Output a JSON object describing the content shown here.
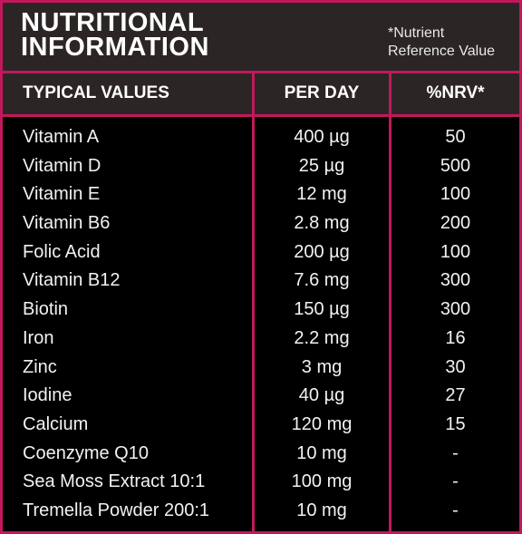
{
  "header": {
    "title_line1": "NUTRITIONAL",
    "title_line2": "INFORMATION",
    "footnote_line1": "*Nutrient",
    "footnote_line2": "Reference Value"
  },
  "columns": {
    "typical": "TYPICAL VALUES",
    "per_day": "PER DAY",
    "nrv": "%NRV*"
  },
  "rows": [
    {
      "name": "Vitamin A",
      "per_day": "400 µg",
      "nrv": "50"
    },
    {
      "name": "Vitamin D",
      "per_day": "25 µg",
      "nrv": "500"
    },
    {
      "name": "Vitamin E",
      "per_day": "12 mg",
      "nrv": "100"
    },
    {
      "name": "Vitamin B6",
      "per_day": "2.8 mg",
      "nrv": "200"
    },
    {
      "name": "Folic Acid",
      "per_day": "200 µg",
      "nrv": "100"
    },
    {
      "name": "Vitamin B12",
      "per_day": "7.6 mg",
      "nrv": "300"
    },
    {
      "name": "Biotin",
      "per_day": "150 µg",
      "nrv": "300"
    },
    {
      "name": "Iron",
      "per_day": "2.2 mg",
      "nrv": "16"
    },
    {
      "name": "Zinc",
      "per_day": "3 mg",
      "nrv": "30"
    },
    {
      "name": "Iodine",
      "per_day": "40 µg",
      "nrv": "27"
    },
    {
      "name": "Calcium",
      "per_day": "120 mg",
      "nrv": "15"
    },
    {
      "name": "Coenzyme Q10",
      "per_day": "10 mg",
      "nrv": "-"
    },
    {
      "name": "Sea Moss Extract 10:1",
      "per_day": "100 mg",
      "nrv": "-"
    },
    {
      "name": "Tremella Powder 200:1",
      "per_day": "10 mg",
      "nrv": "-"
    }
  ],
  "colors": {
    "border": "#c2185b",
    "header_bg": "#2b2625",
    "body_bg": "#000000",
    "text": "#ffffff"
  }
}
